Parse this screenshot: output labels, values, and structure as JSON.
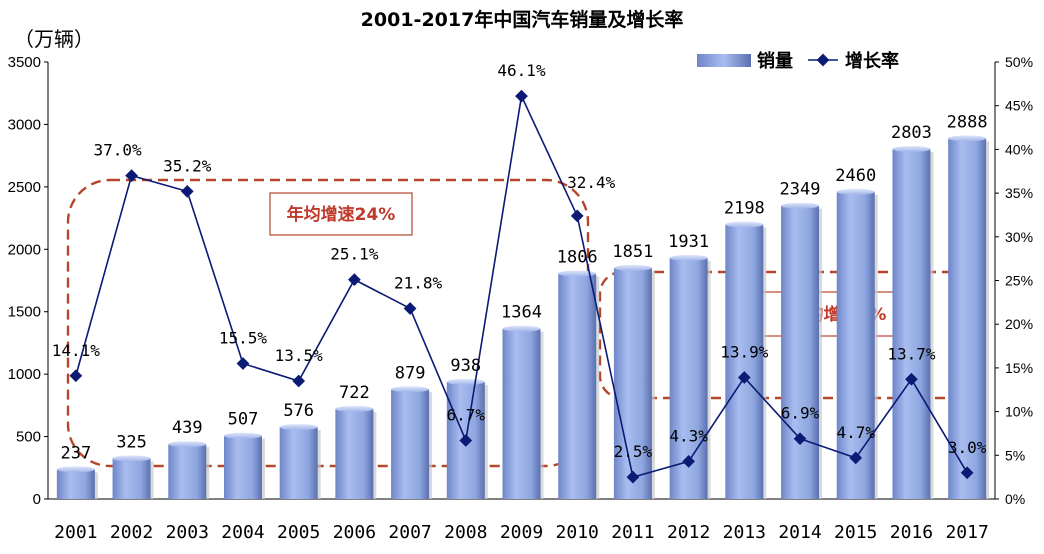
{
  "chart_data": {
    "type": "bar",
    "title": "2001-2017年中国汽车销量及增长率",
    "unit_label": "（万辆）",
    "categories": [
      "2001",
      "2002",
      "2003",
      "2004",
      "2005",
      "2006",
      "2007",
      "2008",
      "2009",
      "2010",
      "2011",
      "2012",
      "2013",
      "2014",
      "2015",
      "2016",
      "2017"
    ],
    "series": [
      {
        "name": "销量",
        "type": "bar",
        "axis": "left",
        "values": [
          237,
          325,
          439,
          507,
          576,
          722,
          879,
          938,
          1364,
          1806,
          1851,
          1931,
          2198,
          2349,
          2460,
          2803,
          2888
        ],
        "labels": [
          "237",
          "325",
          "439",
          "507",
          "576",
          "722",
          "879",
          "938",
          "1364",
          "1806",
          "1851",
          "1931",
          "2198",
          "2349",
          "2460",
          "2803",
          "2888"
        ]
      },
      {
        "name": "增长率",
        "type": "line",
        "axis": "right",
        "values": [
          14.1,
          37.0,
          35.2,
          15.5,
          13.5,
          25.1,
          21.8,
          6.7,
          46.1,
          32.4,
          2.5,
          4.3,
          13.9,
          6.9,
          4.7,
          13.7,
          3.0
        ],
        "labels": [
          "14.1%",
          "37.0%",
          "35.2%",
          "15.5%",
          "13.5%",
          "25.1%",
          "21.8%",
          "6.7%",
          "46.1%",
          "32.4%",
          "2.5%",
          "4.3%",
          "13.9%",
          "6.9%",
          "4.7%",
          "13.7%",
          "3.0%"
        ]
      }
    ],
    "ylim": [
      0,
      3500
    ],
    "yticks": [
      "0",
      "500",
      "1000",
      "1500",
      "2000",
      "2500",
      "3000",
      "3500"
    ],
    "y2lim": [
      0,
      50
    ],
    "y2ticks": [
      "0%",
      "5%",
      "10%",
      "15%",
      "20%",
      "25%",
      "30%",
      "35%",
      "40%",
      "45%",
      "50%"
    ],
    "legend_position": "top-right",
    "annotations": [
      {
        "text": "年均增速24%",
        "range": [
          "2001",
          "2010"
        ]
      },
      {
        "text": "年均增速7%",
        "range": [
          "2011",
          "2017"
        ]
      }
    ],
    "colors": {
      "bar": "#8ea6df",
      "bar_dark": "#5c74b7",
      "line": "#0b1a75",
      "annotation": "#b5452b"
    }
  }
}
